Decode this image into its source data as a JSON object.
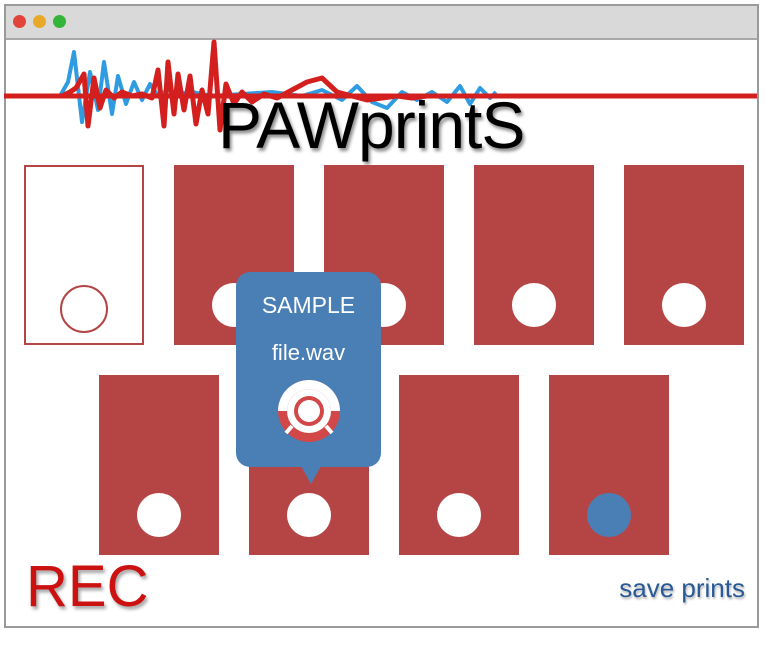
{
  "app": {
    "title": "PAWprintS"
  },
  "colors": {
    "pad": "#b54545",
    "accent_blue": "#4a7fb6",
    "rec_red": "#cc1111",
    "save_blue": "#2a5a95",
    "wave_red": "#d41f1f",
    "wave_blue": "#2f9be0"
  },
  "waveform": {
    "red_icon": "waveform-red",
    "blue_icon": "waveform-blue"
  },
  "pads": [
    {
      "state": "empty",
      "button": "record-circle"
    },
    {
      "state": "filled",
      "button": "play-circle"
    },
    {
      "state": "filled",
      "button": "play-circle"
    },
    {
      "state": "filled",
      "button": "play-circle"
    },
    {
      "state": "filled",
      "button": "play-circle"
    },
    {
      "state": "filled",
      "button": "play-circle"
    },
    {
      "state": "filled",
      "button": "play-circle"
    },
    {
      "state": "filled",
      "button": "play-circle"
    },
    {
      "state": "filled",
      "button": "play-circle-selected"
    }
  ],
  "tooltip": {
    "line1": "SAMPLE",
    "line2": "file.wav",
    "icon": "volume-knob-icon"
  },
  "controls": {
    "rec_label": "REC",
    "save_label": "save prints"
  }
}
